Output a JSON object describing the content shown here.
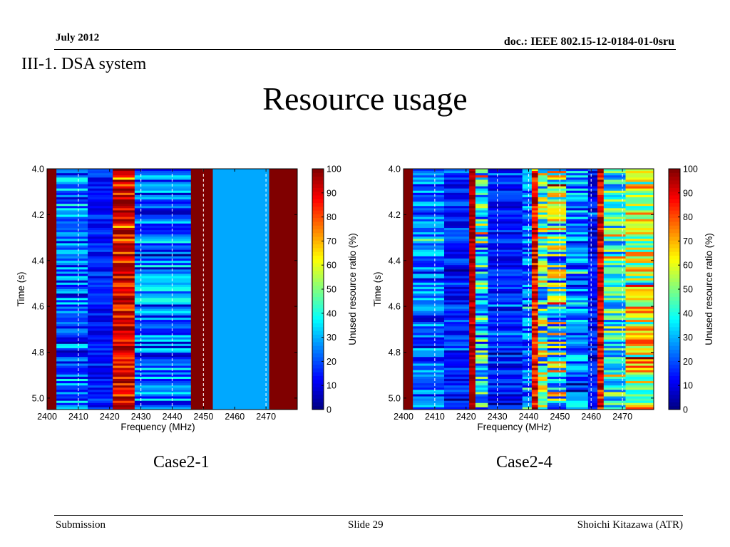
{
  "header": {
    "date": "July 2012",
    "doc": "doc.: IEEE 802.15-12-0184-01-0sru"
  },
  "section": "III-1. DSA system",
  "title": "Resource usage",
  "footer": {
    "left": "Submission",
    "center": "Slide 29",
    "right": "Shoichi Kitazawa (ATR)"
  },
  "colormap": "jet",
  "chart_data": [
    {
      "type": "heatmap",
      "caption": "Case2-1",
      "xlabel": "Frequency (MHz)",
      "ylabel": "Time (s)",
      "colorbar_label": "Unused resource ratio (%)",
      "xlim": [
        2400,
        2480
      ],
      "ylim": [
        4.0,
        5.05
      ],
      "y_inverted": true,
      "xticks": [
        2400,
        2410,
        2420,
        2430,
        2440,
        2450,
        2460,
        2470
      ],
      "yticks": [
        4.0,
        4.2,
        4.4,
        4.6,
        4.8,
        5.0
      ],
      "clim": [
        0,
        100
      ],
      "cticks": [
        0,
        10,
        20,
        30,
        40,
        50,
        60,
        70,
        80,
        90,
        100
      ],
      "channel_boundaries": [
        2410,
        2430,
        2440,
        2450,
        2470
      ],
      "bands": [
        {
          "from": 2400,
          "to": 2403,
          "mean": 100,
          "spread": 0
        },
        {
          "from": 2403,
          "to": 2413,
          "mean": 22,
          "spread": 18
        },
        {
          "from": 2413,
          "to": 2421,
          "mean": 15,
          "spread": 8
        },
        {
          "from": 2421,
          "to": 2428,
          "mean": 88,
          "spread": 14
        },
        {
          "from": 2428,
          "to": 2446,
          "mean": 23,
          "spread": 18
        },
        {
          "from": 2446,
          "to": 2453,
          "mean": 100,
          "spread": 0
        },
        {
          "from": 2453,
          "to": 2471,
          "mean": 29,
          "spread": 0
        },
        {
          "from": 2471,
          "to": 2480,
          "mean": 100,
          "spread": 0
        }
      ]
    },
    {
      "type": "heatmap",
      "caption": "Case2-4",
      "xlabel": "Frequency (MHz)",
      "ylabel": "Time (s)",
      "colorbar_label": "Unused resource ratio (%)",
      "xlim": [
        2400,
        2480
      ],
      "ylim": [
        4.0,
        5.05
      ],
      "y_inverted": true,
      "xticks": [
        2400,
        2410,
        2420,
        2430,
        2440,
        2450,
        2460,
        2470
      ],
      "yticks": [
        4.0,
        4.2,
        4.4,
        4.6,
        4.8,
        5.0
      ],
      "clim": [
        0,
        100
      ],
      "cticks": [
        0,
        10,
        20,
        30,
        40,
        50,
        60,
        70,
        80,
        90,
        100
      ],
      "channel_boundaries": [
        2410,
        2430,
        2440,
        2450,
        2460,
        2470
      ],
      "bands": [
        {
          "from": 2400,
          "to": 2403,
          "mean": 100,
          "spread": 0
        },
        {
          "from": 2403,
          "to": 2413,
          "mean": 22,
          "spread": 15
        },
        {
          "from": 2413,
          "to": 2421,
          "mean": 16,
          "spread": 10
        },
        {
          "from": 2421,
          "to": 2423,
          "mean": 95,
          "spread": 5
        },
        {
          "from": 2423,
          "to": 2427,
          "mean": 35,
          "spread": 25
        },
        {
          "from": 2427,
          "to": 2438,
          "mean": 15,
          "spread": 10
        },
        {
          "from": 2438,
          "to": 2441,
          "mean": 22,
          "spread": 15
        },
        {
          "from": 2441,
          "to": 2443,
          "mean": 88,
          "spread": 14
        },
        {
          "from": 2443,
          "to": 2446,
          "mean": 45,
          "spread": 30
        },
        {
          "from": 2446,
          "to": 2452,
          "mean": 45,
          "spread": 35
        },
        {
          "from": 2452,
          "to": 2459,
          "mean": 25,
          "spread": 18
        },
        {
          "from": 2459,
          "to": 2462,
          "mean": 12,
          "spread": 10
        },
        {
          "from": 2462,
          "to": 2464,
          "mean": 88,
          "spread": 14
        },
        {
          "from": 2464,
          "to": 2471,
          "mean": 40,
          "spread": 20
        },
        {
          "from": 2471,
          "to": 2480,
          "mean": 60,
          "spread": 25
        }
      ]
    }
  ]
}
